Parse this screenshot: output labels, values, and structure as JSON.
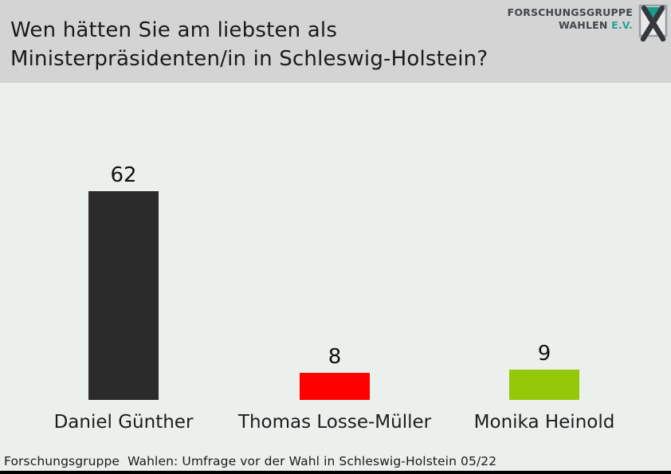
{
  "header": {
    "title_line1": "Wen hätten Sie am liebsten als",
    "title_line2": "Ministerpräsidenten/in in Schleswig-Holstein?",
    "logo": {
      "line1": "FORSCHUNGSGRUPPE",
      "line2_prefix": "WAHLEN",
      "line2_suffix": "E.V.",
      "teal_color": "#25a396"
    }
  },
  "chart_data": {
    "type": "bar",
    "orientation": "vertical",
    "title": "Wen hätten Sie am liebsten als Ministerpräsidenten/in in Schleswig-Holstein?",
    "categories": [
      "Daniel Günther",
      "Thomas Losse-Müller",
      "Monika Heinold"
    ],
    "values": [
      62,
      8,
      9
    ],
    "value_labels": [
      "62",
      "8",
      "9"
    ],
    "bar_colors": [
      "#2b2b2b",
      "#fe0000",
      "#93c908"
    ],
    "ylim": [
      0,
      70
    ],
    "grid": false,
    "legend": "none",
    "axes_shown": false
  },
  "footer": {
    "source_text": "Forschungsgruppe  Wahlen: Umfrage vor der Wahl in Schleswig-Holstein 05/22"
  },
  "colors": {
    "header_bg": "#d4d4d4",
    "body_bg": "#ecf0ed",
    "title_text": "#1a1a1a",
    "bottom_bar": "#000000"
  }
}
